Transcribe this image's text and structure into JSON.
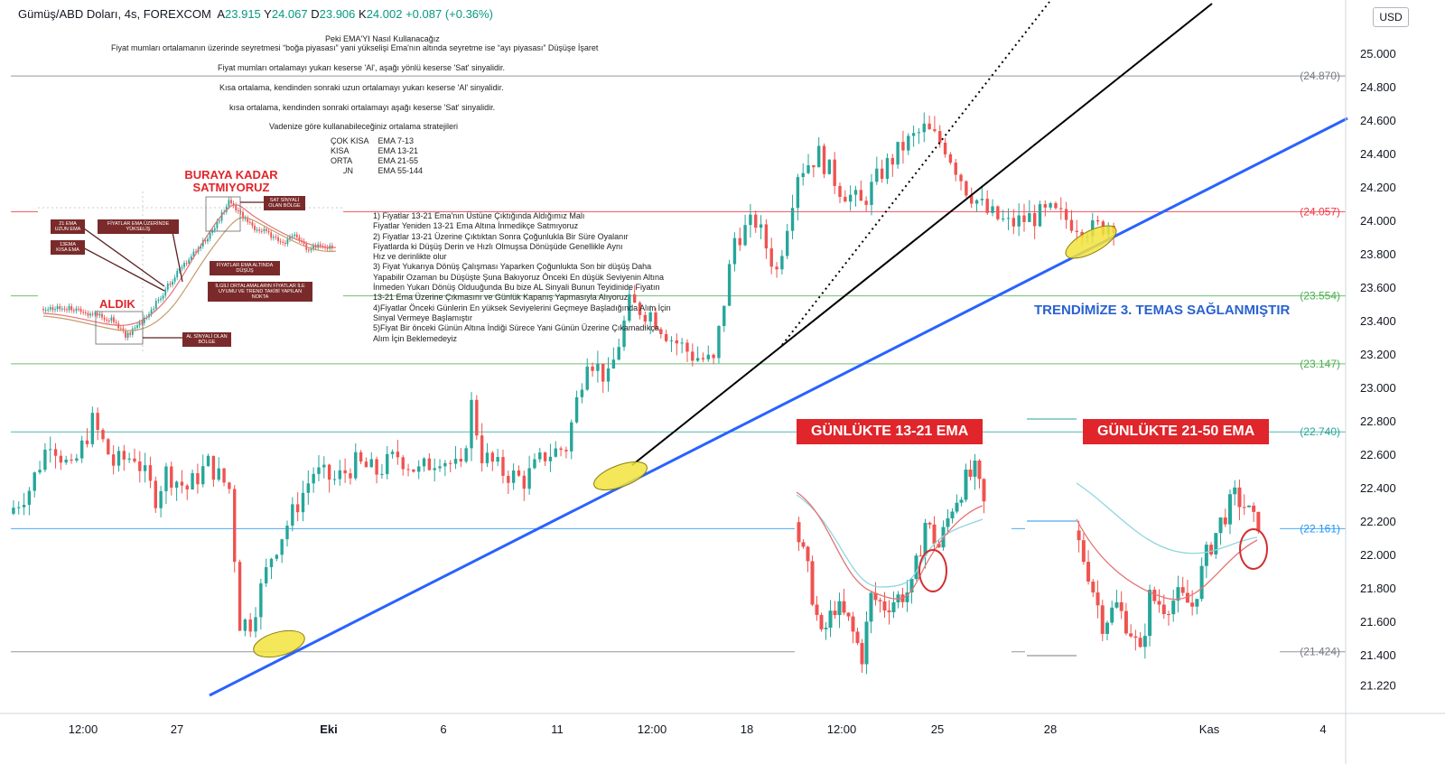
{
  "header": {
    "symbol": "Gümüş/ABD Doları, 4s, FOREXCOM",
    "open_label": "A",
    "open": "23.915",
    "high_label": "Y",
    "high": "24.067",
    "low_label": "D",
    "low": "23.906",
    "close_label": "K",
    "close": "24.002",
    "change": "+0.087 (+0.36%)",
    "currency": "USD"
  },
  "annotations": {
    "title": "Peki EMA'YI Nasıl Kullanacağız",
    "line1": "Fiyat mumları ortalamanın üzerinde seyretmesi “boğa piyasası” yani yükselişi Ema'nın altında seyretme ise “ayı piyasası” Düşüşe İşaret",
    "line2": "Fiyat mumları ortalamayı yukarı keserse 'Al', aşağı yönlü keserse 'Sat' sinyalidir.",
    "line3": "Kısa ortalama, kendinden sonraki uzun ortalamayı yukarı keserse 'Al' sinyalidir.",
    "line4": "kısa ortalama, kendinden sonraki ortalamayı aşağı keserse 'Sat' sinyalidir.",
    "line5": "Vadenize göre kullanabileceğiniz  ortalama stratejileri",
    "strategies": [
      {
        "name": "ÇOK KISA",
        "ema": "EMA 7-13"
      },
      {
        "name": "KISA",
        "ema": "EMA 13-21"
      },
      {
        "name": "ORTA",
        "ema": "EMA 21-55"
      },
      {
        "name": "UZUN",
        "ema": "EMA 55-144"
      }
    ],
    "rules": [
      "1) Fiyatlar 13-21 Ema'nın Üstüne Çıktığında Aldığımız Malı",
      "Fiyatlar Yeniden 13-21 Ema Altına İnmedikçe Satmıyoruz",
      "2) Fiyatlar 13-21 Üzerine Çıktıktan Sonra Çoğunlukla Bir Süre Oyalanır",
      "Fiyatlarda ki Düşüş Derin ve Hızlı Olmuşsa Dönüşüde Genellikle Aynı",
      "Hız ve derinlikte olur",
      "3) Fiyat Yukarıya Dönüş Çalışması Yaparken Çoğunlukta Son bir düşüş Daha",
      "Yapabilir Ozaman bu Düşüşte Şuna Bakıyoruz Önceki En düşük Seviyenin Altına",
      "İnmeden Yukarı Dönüş Olduuğunda Bu bize AL Sinyali Bunun Teyidinide Fiyatın",
      "13-21 Ema Üzerine Çıkmasını ve Günlük Kapanış Yapmasıyla Alıyoruz",
      "4)Fiyatlar Önceki Günlerin En yüksek Seviyelerini Geçmeye Başladığında Alım İçin",
      "Sinyal Vermeye Başlamıştır",
      "5)Fiyat Bir önceki Günün Altına İndiği Sürece Yani Günün Üzerine Çıkamadıkça",
      "Alım İçin Beklemedeyiz"
    ],
    "daily_13_21": "GÜNLÜKTE 13-21 EMA",
    "daily_21_50": "GÜNLÜKTE 21-50 EMA",
    "trend_note": "TRENDİMİZE 3. TEMAS SAĞLANMIŞTIR"
  },
  "inset": {
    "sell_title": "BURAYA KADAR SATMIYORUZ",
    "buy_title": "ALDIK",
    "tag_sell_zone": "SAT SİNYALİ OLAN BÖLGE",
    "tag_21ema": "21 EMA UZUN EMA",
    "tag_13ema": "13EMA KISA EMA",
    "tag_above": "FİYATLAR EMA ÜZERİNDE YÜKSELİŞ",
    "tag_below": "FİYATLAR EMA ALTINDA DÜŞÜŞ",
    "tag_trend": "İLGİLİ ORTALAMALARIN FİYATLAR İLE UYUMU VE TREND TAKİBİ YAPILAN NOKTA",
    "tag_buy_zone": "AL SİNYALİ OLAN BÖLGE"
  },
  "chart_data": {
    "type": "candlestick",
    "symbol": "Gümüş/ABD Doları",
    "timeframe": "4s",
    "ylim": [
      21.12,
      25.13
    ],
    "y_ticks": [
      "25.000",
      "24.800",
      "24.600",
      "24.400",
      "24.200",
      "24.000",
      "23.800",
      "23.600",
      "23.400",
      "23.200",
      "23.000",
      "22.800",
      "22.600",
      "22.400",
      "22.200",
      "22.000",
      "21.800",
      "21.600",
      "21.400",
      "21.220"
    ],
    "x_ticks": [
      "12:00",
      "27",
      "Eki",
      "6",
      "11",
      "12:00",
      "18",
      "12:00",
      "25",
      "28",
      "Kas",
      "4"
    ],
    "levels": [
      {
        "value": 24.87,
        "label": "(24.870)",
        "color": "#787b86"
      },
      {
        "value": 24.057,
        "label": "(24.057)",
        "color": "#f23645"
      },
      {
        "value": 23.554,
        "label": "(23.554)",
        "color": "#4caf50"
      },
      {
        "value": 23.147,
        "label": "(23.147)",
        "color": "#4caf50"
      },
      {
        "value": 22.74,
        "label": "(22.740)",
        "color": "#26a69a"
      },
      {
        "value": 22.161,
        "label": "(22.161)",
        "color": "#2196f3"
      },
      {
        "value": 21.424,
        "label": "(21.424)",
        "color": "#787b86"
      }
    ],
    "main_waypoints": [
      [
        0,
        22.25
      ],
      [
        4,
        22.4
      ],
      [
        8,
        22.7
      ],
      [
        12,
        22.5
      ],
      [
        16,
        22.8
      ],
      [
        20,
        22.55
      ],
      [
        24,
        22.6
      ],
      [
        28,
        22.35
      ],
      [
        30,
        22.5
      ],
      [
        34,
        22.4
      ],
      [
        38,
        22.55
      ],
      [
        42,
        22.4
      ],
      [
        44,
        21.6
      ],
      [
        46,
        21.6
      ],
      [
        50,
        22.0
      ],
      [
        54,
        22.25
      ],
      [
        58,
        22.5
      ],
      [
        62,
        22.45
      ],
      [
        66,
        22.55
      ],
      [
        70,
        22.5
      ],
      [
        74,
        22.6
      ],
      [
        78,
        22.5
      ],
      [
        82,
        22.6
      ],
      [
        86,
        22.5
      ],
      [
        88,
        22.9
      ],
      [
        90,
        22.6
      ],
      [
        94,
        22.5
      ],
      [
        98,
        22.45
      ],
      [
        102,
        22.6
      ],
      [
        106,
        22.65
      ],
      [
        110,
        23.2
      ],
      [
        114,
        23.05
      ],
      [
        118,
        23.5
      ],
      [
        122,
        23.45
      ],
      [
        126,
        23.3
      ],
      [
        130,
        23.2
      ],
      [
        134,
        23.15
      ],
      [
        138,
        23.9
      ],
      [
        142,
        24.0
      ],
      [
        146,
        23.7
      ],
      [
        150,
        24.3
      ],
      [
        154,
        24.4
      ],
      [
        158,
        24.2
      ],
      [
        162,
        24.1
      ],
      [
        166,
        24.3
      ],
      [
        170,
        24.45
      ],
      [
        174,
        24.55
      ],
      [
        178,
        24.45
      ],
      [
        182,
        24.2
      ],
      [
        186,
        24.05
      ],
      [
        190,
        23.98
      ],
      [
        194,
        24.02
      ],
      [
        198,
        24.05
      ],
      [
        202,
        24.0
      ],
      [
        206,
        23.95
      ],
      [
        210,
        24.0
      ]
    ],
    "daily_13_21_waypoints": [
      [
        0,
        22.2
      ],
      [
        3,
        21.9
      ],
      [
        6,
        21.5
      ],
      [
        9,
        21.7
      ],
      [
        12,
        21.6
      ],
      [
        15,
        21.4
      ],
      [
        17,
        21.75
      ],
      [
        20,
        21.7
      ],
      [
        23,
        21.75
      ],
      [
        26,
        21.8
      ],
      [
        29,
        22.2
      ],
      [
        32,
        22.05
      ],
      [
        35,
        22.3
      ],
      [
        38,
        22.45
      ],
      [
        40,
        22.5
      ],
      [
        42,
        22.3
      ]
    ],
    "daily_21_50_waypoints": [
      [
        0,
        22.15
      ],
      [
        3,
        21.9
      ],
      [
        6,
        21.6
      ],
      [
        9,
        21.7
      ],
      [
        12,
        21.55
      ],
      [
        14,
        21.4
      ],
      [
        16,
        21.75
      ],
      [
        19,
        21.7
      ],
      [
        22,
        21.75
      ],
      [
        25,
        21.7
      ],
      [
        28,
        22.0
      ],
      [
        31,
        22.2
      ],
      [
        34,
        22.35
      ],
      [
        36,
        22.3
      ],
      [
        38,
        22.2
      ],
      [
        39,
        22.2
      ]
    ],
    "trend_lines": [
      {
        "name": "blue",
        "color": "#2962ff",
        "from": [
          0,
          21.2
        ],
        "to": [
          1,
          24.5
        ]
      },
      {
        "name": "black",
        "color": "#000000",
        "from": [
          0,
          22.45
        ],
        "to": [
          1,
          25.13
        ]
      },
      {
        "name": "dotted",
        "color": "#000000",
        "from": [
          0,
          23.2
        ],
        "to": [
          1,
          25.13
        ]
      }
    ]
  }
}
